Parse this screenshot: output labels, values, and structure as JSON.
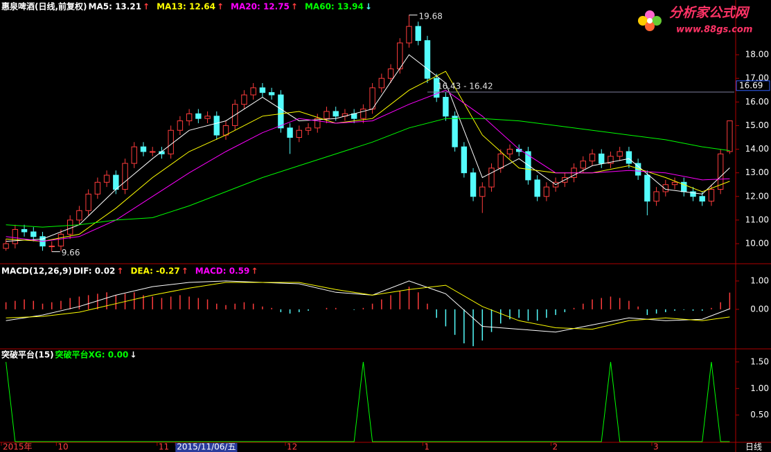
{
  "chart_data": [
    {
      "type": "candlestick",
      "title": "惠泉啤酒(日线,前复权)",
      "categories": [
        "2015年",
        null,
        null,
        null,
        null,
        null,
        "10",
        null,
        null,
        null,
        null,
        null,
        null,
        null,
        null,
        null,
        null,
        "11",
        null,
        "2015/11/06/五",
        null,
        null,
        null,
        null,
        null,
        null,
        null,
        null,
        null,
        null,
        null,
        "12",
        null,
        null,
        null,
        null,
        null,
        null,
        null,
        null,
        null,
        null,
        null,
        null,
        null,
        null,
        "1",
        null,
        null,
        null,
        null,
        null,
        null,
        null,
        null,
        null,
        null,
        null,
        null,
        null,
        "2",
        null,
        null,
        null,
        null,
        null,
        null,
        null,
        null,
        null,
        null,
        "3",
        null,
        null,
        null,
        null,
        null,
        null,
        null,
        null
      ],
      "selected_index": 19,
      "open": [
        9.8,
        10.0,
        10.6,
        10.5,
        10.3,
        9.9,
        9.9,
        10.4,
        11.0,
        11.4,
        12.1,
        12.6,
        12.9,
        12.3,
        13.4,
        14.1,
        13.9,
        13.9,
        13.8,
        14.8,
        15.2,
        15.5,
        15.3,
        15.4,
        14.6,
        15.0,
        15.9,
        16.3,
        16.6,
        16.4,
        16.3,
        14.9,
        14.5,
        14.8,
        14.9,
        15.3,
        15.6,
        15.4,
        15.5,
        15.3,
        15.7,
        16.6,
        17.0,
        17.4,
        18.5,
        19.2,
        18.6,
        17.0,
        16.2,
        15.4,
        14.1,
        13.0,
        12.0,
        12.4,
        13.2,
        13.8,
        14.0,
        13.9,
        12.7,
        12.0,
        12.4,
        12.6,
        12.8,
        13.2,
        13.5,
        13.8,
        13.4,
        13.7,
        13.9,
        13.4,
        12.9,
        11.8,
        12.2,
        12.5,
        12.6,
        12.2,
        12.0,
        11.8,
        12.3,
        13.9
      ],
      "high": [
        10.2,
        10.8,
        10.8,
        10.7,
        10.5,
        10.1,
        10.6,
        11.2,
        11.6,
        12.3,
        12.8,
        13.1,
        13.1,
        13.6,
        14.3,
        14.3,
        14.1,
        14.1,
        15.0,
        15.4,
        15.7,
        15.7,
        15.6,
        15.6,
        15.2,
        16.1,
        16.5,
        16.8,
        16.8,
        16.6,
        16.5,
        15.1,
        15.0,
        15.1,
        15.5,
        15.8,
        15.8,
        15.7,
        15.7,
        15.9,
        16.8,
        17.2,
        17.6,
        18.7,
        19.68,
        19.4,
        18.8,
        17.2,
        16.4,
        15.6,
        14.3,
        13.2,
        12.6,
        13.4,
        14.0,
        14.2,
        14.2,
        14.1,
        12.9,
        12.6,
        12.8,
        13.0,
        13.4,
        13.7,
        14.0,
        14.0,
        13.9,
        14.1,
        14.1,
        13.6,
        13.1,
        12.4,
        12.7,
        12.8,
        12.8,
        12.4,
        12.2,
        12.5,
        14.0,
        15.2
      ],
      "low": [
        9.7,
        9.8,
        10.3,
        10.1,
        9.7,
        9.66,
        9.7,
        10.2,
        10.8,
        11.2,
        11.9,
        12.4,
        12.1,
        12.1,
        13.2,
        13.7,
        13.7,
        13.6,
        13.6,
        14.6,
        15.0,
        15.1,
        15.1,
        14.4,
        14.4,
        14.8,
        15.7,
        16.1,
        16.2,
        16.1,
        14.7,
        13.8,
        14.3,
        14.6,
        14.7,
        15.1,
        15.2,
        15.2,
        15.1,
        15.1,
        15.5,
        16.4,
        16.8,
        17.2,
        18.3,
        18.4,
        16.8,
        16.0,
        15.2,
        13.9,
        12.8,
        11.8,
        11.3,
        12.2,
        13.0,
        13.6,
        13.7,
        12.5,
        11.8,
        11.8,
        12.2,
        12.4,
        12.6,
        13.0,
        13.3,
        13.2,
        13.2,
        13.5,
        13.2,
        12.7,
        11.2,
        11.6,
        12.0,
        12.3,
        12.0,
        11.8,
        11.6,
        11.6,
        12.1,
        13.8
      ],
      "close": [
        10.0,
        10.6,
        10.5,
        10.3,
        9.9,
        9.9,
        10.4,
        11.0,
        11.4,
        12.1,
        12.6,
        12.9,
        12.3,
        13.4,
        14.1,
        13.9,
        13.9,
        13.8,
        14.8,
        15.2,
        15.5,
        15.3,
        15.4,
        14.6,
        15.0,
        15.9,
        16.3,
        16.6,
        16.4,
        16.3,
        14.9,
        14.5,
        14.8,
        14.9,
        15.3,
        15.6,
        15.4,
        15.5,
        15.3,
        15.7,
        16.6,
        17.0,
        17.4,
        18.5,
        19.2,
        18.6,
        17.0,
        16.2,
        15.4,
        14.1,
        13.0,
        12.0,
        12.4,
        13.2,
        13.8,
        14.0,
        13.9,
        12.7,
        12.0,
        12.4,
        12.6,
        12.8,
        13.2,
        13.5,
        13.8,
        13.4,
        13.7,
        13.9,
        13.4,
        12.9,
        11.8,
        12.2,
        12.5,
        12.6,
        12.2,
        12.0,
        11.8,
        12.3,
        13.8,
        15.2
      ],
      "up_color": "#ff3c3c",
      "down_color": "#54fcfc",
      "ylim": [
        9.18,
        19.79
      ],
      "yticks": [
        {
          "value": 10,
          "label": "10.00"
        },
        {
          "value": 11,
          "label": "11.00"
        },
        {
          "value": 12,
          "label": "12.00"
        },
        {
          "value": 13,
          "label": "13.00"
        },
        {
          "value": 14,
          "label": "14.00"
        },
        {
          "value": 15,
          "label": "15.00"
        },
        {
          "value": 16,
          "label": "16.00"
        },
        {
          "value": 17,
          "label": "17.00"
        },
        {
          "value": 18,
          "label": "18.00"
        }
      ],
      "x": [
        0,
        4,
        8,
        12,
        16,
        20,
        24,
        28,
        32,
        36,
        40,
        44,
        48,
        52,
        56,
        60,
        64,
        68,
        72,
        76,
        79
      ],
      "series": [
        {
          "name": "MA5: 13.21",
          "arrow": "↑",
          "arrow_color": "#ff3c3c",
          "color": "#ffffff",
          "values": [
            10.1,
            10.2,
            10.8,
            12.3,
            13.6,
            14.8,
            15.2,
            16.2,
            15.2,
            15.3,
            15.7,
            18.0,
            16.8,
            12.8,
            13.6,
            12.5,
            13.3,
            13.6,
            12.3,
            12.1,
            13.21
          ]
        },
        {
          "name": "MA13: 12.64",
          "arrow": "↑",
          "arrow_color": "#ff3c3c",
          "color": "#ffff00",
          "values": [
            10.2,
            10.1,
            10.4,
            11.5,
            12.8,
            13.9,
            14.6,
            15.4,
            15.6,
            15.1,
            15.3,
            16.5,
            17.3,
            14.6,
            13.2,
            13.0,
            13.0,
            13.3,
            12.8,
            12.2,
            12.64
          ]
        },
        {
          "name": "MA20: 12.75",
          "arrow": "↑",
          "arrow_color": "#ff3c3c",
          "color": "#ff00ff",
          "values": [
            10.3,
            10.1,
            10.3,
            11.0,
            12.0,
            13.0,
            13.9,
            14.7,
            15.3,
            15.1,
            15.2,
            15.9,
            16.5,
            15.4,
            14.0,
            13.0,
            13.0,
            13.1,
            13.0,
            12.7,
            12.75
          ]
        },
        {
          "name": "MA60: 13.94",
          "arrow": "↓",
          "arrow_color": "#54fcfc",
          "color": "#00ff00",
          "values": [
            10.8,
            10.7,
            10.8,
            11.0,
            11.1,
            11.6,
            12.2,
            12.8,
            13.3,
            13.8,
            14.3,
            14.9,
            15.3,
            15.3,
            15.2,
            15.0,
            14.8,
            14.6,
            14.4,
            14.1,
            13.94
          ]
        }
      ],
      "annotations": [
        {
          "x": 44,
          "value": 19.68,
          "label": "19.68"
        },
        {
          "x": 5,
          "value": 9.66,
          "label": "9.66"
        },
        {
          "x": 46,
          "value": 16.42,
          "label": "16.43 - 16.42"
        }
      ],
      "price_marker": {
        "value": 16.69,
        "label": "16.69"
      }
    },
    {
      "type": "macd",
      "title": "MACD(12,26,9)",
      "ylim": [
        -1.37,
        1.56
      ],
      "yticks": [
        {
          "value": 0,
          "label": "0.00"
        },
        {
          "value": 1,
          "label": "1.00"
        }
      ],
      "x": [
        0,
        4,
        8,
        12,
        16,
        20,
        24,
        28,
        32,
        36,
        40,
        44,
        48,
        52,
        56,
        60,
        64,
        68,
        72,
        76,
        79
      ],
      "series": [
        {
          "name": "DIF: 0.02",
          "arrow": "↑",
          "arrow_color": "#ff3c3c",
          "color": "#ffffff",
          "values": [
            -0.4,
            -0.2,
            0.1,
            0.5,
            0.8,
            0.95,
            1.0,
            0.95,
            0.9,
            0.6,
            0.5,
            1.0,
            0.55,
            -0.6,
            -0.7,
            -0.8,
            -0.55,
            -0.3,
            -0.4,
            -0.35,
            0.02
          ]
        },
        {
          "name": "DEA: -0.27",
          "arrow": "↑",
          "arrow_color": "#ff3c3c",
          "color": "#ffff00",
          "values": [
            -0.3,
            -0.25,
            -0.1,
            0.2,
            0.5,
            0.75,
            0.95,
            0.95,
            0.95,
            0.7,
            0.5,
            0.7,
            0.85,
            0.1,
            -0.4,
            -0.65,
            -0.7,
            -0.4,
            -0.3,
            -0.4,
            -0.27
          ]
        }
      ],
      "histogram": {
        "name": "MACD: 0.59",
        "arrow": "↑",
        "arrow_color": "#ff3c3c",
        "color": "#ff00ff",
        "up_color": "#ff3c3c",
        "down_color": "#54fcfc",
        "values": [
          0.25,
          0.3,
          0.35,
          0.3,
          0.2,
          0.25,
          0.3,
          0.4,
          0.45,
          0.5,
          0.55,
          0.6,
          0.5,
          0.55,
          0.6,
          0.5,
          0.45,
          0.4,
          0.45,
          0.5,
          0.45,
          0.4,
          0.35,
          0.2,
          0.15,
          0.2,
          0.25,
          0.2,
          0.1,
          0.05,
          -0.1,
          -0.15,
          -0.1,
          -0.05,
          0.0,
          0.05,
          0.05,
          0.0,
          -0.02,
          0.05,
          0.2,
          0.35,
          0.5,
          0.65,
          0.8,
          0.6,
          0.2,
          -0.3,
          -0.6,
          -0.9,
          -1.2,
          -1.3,
          -1.1,
          -0.8,
          -0.5,
          -0.35,
          -0.3,
          -0.4,
          -0.4,
          -0.3,
          -0.2,
          -0.1,
          0.05,
          0.2,
          0.35,
          0.4,
          0.45,
          0.4,
          0.3,
          0.1,
          -0.2,
          -0.15,
          -0.1,
          -0.05,
          -0.02,
          -0.05,
          -0.05,
          0.05,
          0.25,
          0.59
        ]
      }
    },
    {
      "type": "line",
      "title": "突破平台(15)",
      "ylim": [
        0,
        1.72
      ],
      "yticks": [
        {
          "value": 0.5,
          "label": "0.50"
        },
        {
          "value": 1,
          "label": "1.00"
        },
        {
          "value": 1.5,
          "label": "1.50"
        }
      ],
      "series": [
        {
          "name": "突破平台XG: 0.00",
          "arrow": "↓",
          "arrow_color": "#ffffff",
          "color": "#00ff00",
          "values": [
            1.5,
            0,
            0,
            0,
            0,
            0,
            0,
            0,
            0,
            0,
            0,
            0,
            0,
            0,
            0,
            0,
            0,
            0,
            0,
            0,
            0,
            0,
            0,
            0,
            0,
            0,
            0,
            0,
            0,
            0,
            0,
            0,
            0,
            0,
            0,
            0,
            0,
            0,
            0,
            1.5,
            0,
            0,
            0,
            0,
            0,
            0,
            0,
            0,
            0,
            0,
            0,
            0,
            0,
            0,
            0,
            0,
            0,
            0,
            0,
            0,
            0,
            0,
            0,
            0,
            0,
            0,
            1.5,
            0,
            0,
            0,
            0,
            0,
            0,
            0,
            0,
            0,
            0,
            1.5,
            0,
            0
          ]
        }
      ]
    }
  ],
  "period": "日线",
  "logo": {
    "title": "分析家公式网",
    "url": "www.88gs.com"
  }
}
